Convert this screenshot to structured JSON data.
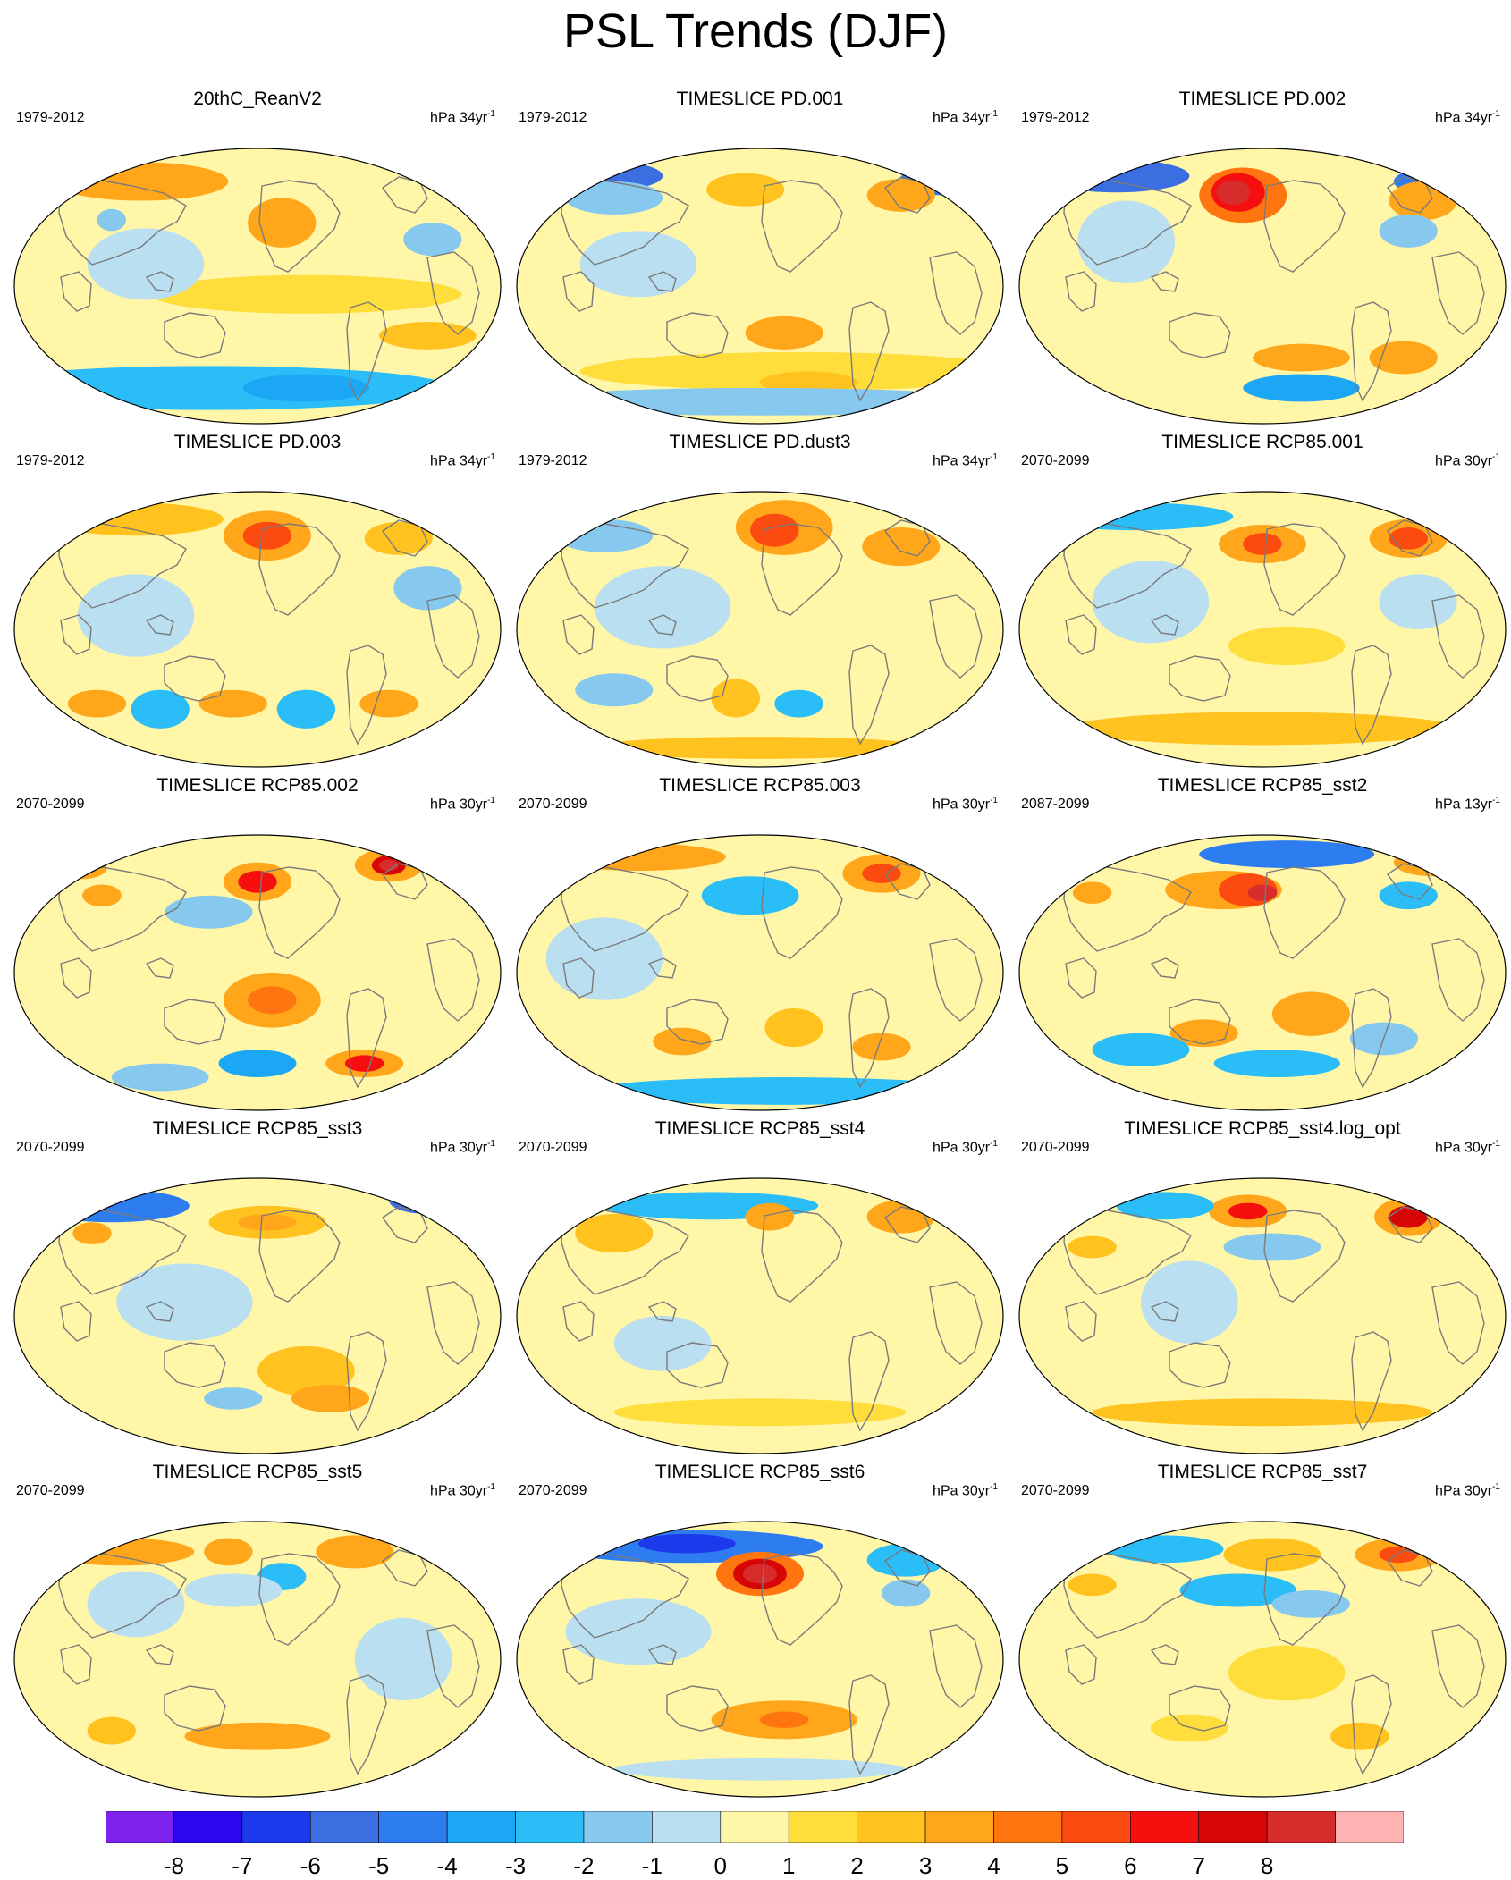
{
  "title": "PSL Trends (DJF)",
  "colors": {
    "levels": [
      "#7e22ee",
      "#2a07f0",
      "#1d39ec",
      "#3b6ee0",
      "#2d7cf0",
      "#1ca7f5",
      "#2abdf8",
      "#87c8ee",
      "#b9dff0",
      "#fff6a8",
      "#ffdd3a",
      "#ffc21e",
      "#ffa61b",
      "#ff7510",
      "#fb4b10",
      "#f50f0f",
      "#d70606",
      "#d72c2c",
      "#ffb4b4"
    ],
    "coastline": "#7a7a7a"
  },
  "colorbar": {
    "labels": [
      "-8",
      "-7",
      "-6",
      "-5",
      "-4",
      "-3",
      "-2",
      "-1",
      "0",
      "1",
      "2",
      "3",
      "4",
      "5",
      "6",
      "7",
      "8"
    ]
  },
  "panels": [
    {
      "title": "20thC_ReanV2",
      "period": "1979-2012",
      "units": "hPa 34yr",
      "units_exp": "-1",
      "blobs": [
        [
          0.26,
          0.12,
          0.18,
          0.07,
          3
        ],
        [
          0.55,
          0.27,
          0.07,
          0.09,
          3
        ],
        [
          0.2,
          0.26,
          0.03,
          0.04,
          -2
        ],
        [
          0.4,
          0.87,
          0.5,
          0.08,
          -3
        ],
        [
          0.6,
          0.87,
          0.13,
          0.05,
          -4
        ],
        [
          0.22,
          0.86,
          0.1,
          0.05,
          -3
        ],
        [
          0.85,
          0.68,
          0.1,
          0.05,
          2
        ],
        [
          0.6,
          0.53,
          0.32,
          0.07,
          1
        ],
        [
          0.86,
          0.33,
          0.06,
          0.06,
          -2
        ],
        [
          0.27,
          0.42,
          0.12,
          0.13,
          -1
        ]
      ]
    },
    {
      "title": "TIMESLICE PD.001",
      "period": "1979-2012",
      "units": "hPa 34yr",
      "units_exp": "-1",
      "blobs": [
        [
          0.2,
          0.1,
          0.1,
          0.05,
          -6
        ],
        [
          0.87,
          0.11,
          0.08,
          0.06,
          -5
        ],
        [
          0.47,
          0.15,
          0.08,
          0.06,
          2
        ],
        [
          0.79,
          0.17,
          0.07,
          0.06,
          3
        ],
        [
          0.58,
          0.81,
          0.45,
          0.07,
          1
        ],
        [
          0.55,
          0.67,
          0.08,
          0.06,
          3
        ],
        [
          0.6,
          0.85,
          0.1,
          0.04,
          2
        ],
        [
          0.25,
          0.42,
          0.12,
          0.12,
          -1
        ],
        [
          0.5,
          0.92,
          0.5,
          0.05,
          -2
        ],
        [
          0.2,
          0.18,
          0.1,
          0.06,
          -2
        ]
      ]
    },
    {
      "title": "TIMESLICE PD.002",
      "period": "1979-2012",
      "units": "hPa 34yr",
      "units_exp": "-1",
      "blobs": [
        [
          0.2,
          0.1,
          0.15,
          0.06,
          -6
        ],
        [
          0.85,
          0.12,
          0.08,
          0.05,
          -5
        ],
        [
          0.46,
          0.17,
          0.09,
          0.1,
          4
        ],
        [
          0.45,
          0.16,
          0.055,
          0.07,
          6
        ],
        [
          0.44,
          0.16,
          0.035,
          0.045,
          8
        ],
        [
          0.83,
          0.19,
          0.07,
          0.07,
          3
        ],
        [
          0.58,
          0.76,
          0.1,
          0.05,
          3
        ],
        [
          0.58,
          0.87,
          0.12,
          0.05,
          -4
        ],
        [
          0.79,
          0.76,
          0.07,
          0.06,
          3
        ],
        [
          0.22,
          0.34,
          0.1,
          0.15,
          -1
        ],
        [
          0.8,
          0.3,
          0.06,
          0.06,
          -2
        ]
      ]
    },
    {
      "title": "TIMESLICE PD.003",
      "period": "1979-2012",
      "units": "hPa 34yr",
      "units_exp": "-1",
      "blobs": [
        [
          0.25,
          0.1,
          0.18,
          0.06,
          2
        ],
        [
          0.52,
          0.16,
          0.09,
          0.09,
          3
        ],
        [
          0.52,
          0.16,
          0.05,
          0.05,
          5
        ],
        [
          0.79,
          0.17,
          0.07,
          0.06,
          2
        ],
        [
          0.17,
          0.77,
          0.06,
          0.05,
          3
        ],
        [
          0.45,
          0.77,
          0.07,
          0.05,
          3
        ],
        [
          0.77,
          0.77,
          0.06,
          0.05,
          3
        ],
        [
          0.3,
          0.79,
          0.06,
          0.07,
          -3
        ],
        [
          0.6,
          0.79,
          0.06,
          0.07,
          -3
        ],
        [
          0.25,
          0.45,
          0.12,
          0.15,
          -1
        ],
        [
          0.85,
          0.35,
          0.07,
          0.08,
          -2
        ]
      ]
    },
    {
      "title": "TIMESLICE PD.dust3",
      "period": "1979-2012",
      "units": "hPa 34yr",
      "units_exp": "-1",
      "blobs": [
        [
          0.55,
          0.13,
          0.1,
          0.1,
          3
        ],
        [
          0.53,
          0.14,
          0.05,
          0.06,
          5
        ],
        [
          0.79,
          0.2,
          0.08,
          0.07,
          3
        ],
        [
          0.18,
          0.16,
          0.1,
          0.06,
          -2
        ],
        [
          0.45,
          0.75,
          0.05,
          0.07,
          2
        ],
        [
          0.58,
          0.77,
          0.05,
          0.05,
          -3
        ],
        [
          0.2,
          0.72,
          0.08,
          0.06,
          -2
        ],
        [
          0.5,
          0.93,
          0.35,
          0.04,
          2
        ],
        [
          0.3,
          0.42,
          0.14,
          0.15,
          -1
        ]
      ]
    },
    {
      "title": "TIMESLICE RCP85.001",
      "period": "2070-2099",
      "units": "hPa 30yr",
      "units_exp": "-1",
      "blobs": [
        [
          0.24,
          0.09,
          0.2,
          0.05,
          -3
        ],
        [
          0.5,
          0.19,
          0.09,
          0.07,
          3
        ],
        [
          0.5,
          0.19,
          0.04,
          0.04,
          5
        ],
        [
          0.8,
          0.17,
          0.08,
          0.07,
          3
        ],
        [
          0.8,
          0.17,
          0.04,
          0.04,
          5
        ],
        [
          0.5,
          0.86,
          0.4,
          0.06,
          2
        ],
        [
          0.55,
          0.56,
          0.12,
          0.07,
          1
        ],
        [
          0.27,
          0.4,
          0.12,
          0.15,
          -1
        ],
        [
          0.82,
          0.4,
          0.08,
          0.1,
          -1
        ]
      ]
    },
    {
      "title": "TIMESLICE RCP85.002",
      "period": "2070-2099",
      "units": "hPa 30yr",
      "units_exp": "-1",
      "blobs": [
        [
          0.5,
          0.17,
          0.07,
          0.07,
          3
        ],
        [
          0.5,
          0.17,
          0.04,
          0.04,
          6
        ],
        [
          0.77,
          0.11,
          0.07,
          0.06,
          3
        ],
        [
          0.77,
          0.11,
          0.035,
          0.035,
          7
        ],
        [
          0.77,
          0.11,
          0.02,
          0.02,
          8
        ],
        [
          0.18,
          0.22,
          0.04,
          0.04,
          3
        ],
        [
          0.53,
          0.6,
          0.1,
          0.1,
          3
        ],
        [
          0.53,
          0.6,
          0.05,
          0.05,
          4
        ],
        [
          0.72,
          0.83,
          0.08,
          0.05,
          3
        ],
        [
          0.72,
          0.83,
          0.04,
          0.03,
          6
        ],
        [
          0.5,
          0.83,
          0.08,
          0.05,
          -4
        ],
        [
          0.3,
          0.88,
          0.1,
          0.05,
          -2
        ],
        [
          0.4,
          0.28,
          0.09,
          0.06,
          -2
        ],
        [
          0.14,
          0.12,
          0.05,
          0.04,
          3
        ]
      ]
    },
    {
      "title": "TIMESLICE RCP85.003",
      "period": "2070-2099",
      "units": "hPa 30yr",
      "units_exp": "-1",
      "blobs": [
        [
          0.25,
          0.08,
          0.18,
          0.05,
          3
        ],
        [
          0.75,
          0.14,
          0.08,
          0.07,
          3
        ],
        [
          0.75,
          0.14,
          0.04,
          0.035,
          5
        ],
        [
          0.48,
          0.22,
          0.1,
          0.07,
          -3
        ],
        [
          0.34,
          0.75,
          0.06,
          0.05,
          3
        ],
        [
          0.57,
          0.7,
          0.06,
          0.07,
          2
        ],
        [
          0.75,
          0.77,
          0.06,
          0.05,
          3
        ],
        [
          0.55,
          0.93,
          0.4,
          0.05,
          -3
        ],
        [
          0.18,
          0.45,
          0.12,
          0.15,
          -1
        ]
      ]
    },
    {
      "title": "TIMESLICE RCP85_sst2",
      "period": "2087-2099",
      "units": "hPa 13yr",
      "units_exp": "-1",
      "blobs": [
        [
          0.55,
          0.07,
          0.18,
          0.05,
          -5
        ],
        [
          0.42,
          0.2,
          0.12,
          0.07,
          3
        ],
        [
          0.47,
          0.2,
          0.06,
          0.06,
          5
        ],
        [
          0.5,
          0.21,
          0.03,
          0.03,
          8
        ],
        [
          0.15,
          0.21,
          0.04,
          0.04,
          3
        ],
        [
          0.8,
          0.22,
          0.06,
          0.05,
          -3
        ],
        [
          0.85,
          0.1,
          0.08,
          0.05,
          3
        ],
        [
          0.38,
          0.72,
          0.07,
          0.05,
          3
        ],
        [
          0.6,
          0.65,
          0.08,
          0.08,
          3
        ],
        [
          0.25,
          0.78,
          0.1,
          0.06,
          -3
        ],
        [
          0.53,
          0.83,
          0.13,
          0.05,
          -3
        ],
        [
          0.75,
          0.74,
          0.07,
          0.06,
          -2
        ]
      ]
    },
    {
      "title": "TIMESLICE RCP85_sst3",
      "period": "2070-2099",
      "units": "hPa 30yr",
      "units_exp": "-1",
      "blobs": [
        [
          0.2,
          0.1,
          0.16,
          0.06,
          -5
        ],
        [
          0.85,
          0.08,
          0.08,
          0.05,
          -6
        ],
        [
          0.52,
          0.16,
          0.12,
          0.06,
          2
        ],
        [
          0.52,
          0.16,
          0.06,
          0.03,
          3
        ],
        [
          0.16,
          0.2,
          0.04,
          0.04,
          3
        ],
        [
          0.6,
          0.7,
          0.1,
          0.09,
          2
        ],
        [
          0.65,
          0.8,
          0.08,
          0.05,
          3
        ],
        [
          0.45,
          0.8,
          0.06,
          0.04,
          -2
        ],
        [
          0.35,
          0.45,
          0.14,
          0.14,
          -1
        ]
      ]
    },
    {
      "title": "TIMESLICE RCP85_sst4",
      "period": "2070-2099",
      "units": "hPa 30yr",
      "units_exp": "-1",
      "blobs": [
        [
          0.4,
          0.1,
          0.22,
          0.05,
          -3
        ],
        [
          0.52,
          0.14,
          0.05,
          0.05,
          3
        ],
        [
          0.79,
          0.14,
          0.07,
          0.06,
          3
        ],
        [
          0.2,
          0.2,
          0.08,
          0.07,
          2
        ],
        [
          0.3,
          0.6,
          0.1,
          0.1,
          -1
        ],
        [
          0.5,
          0.85,
          0.3,
          0.05,
          1
        ]
      ]
    },
    {
      "title": "TIMESLICE RCP85_sst4.log_opt",
      "period": "2070-2099",
      "units": "hPa 30yr",
      "units_exp": "-1",
      "blobs": [
        [
          0.47,
          0.12,
          0.08,
          0.06,
          3
        ],
        [
          0.47,
          0.12,
          0.04,
          0.03,
          6
        ],
        [
          0.8,
          0.14,
          0.07,
          0.07,
          3
        ],
        [
          0.8,
          0.14,
          0.04,
          0.04,
          7
        ],
        [
          0.3,
          0.1,
          0.1,
          0.05,
          -3
        ],
        [
          0.52,
          0.25,
          0.1,
          0.05,
          -2
        ],
        [
          0.15,
          0.25,
          0.05,
          0.04,
          2
        ],
        [
          0.5,
          0.85,
          0.35,
          0.05,
          2
        ],
        [
          0.35,
          0.45,
          0.1,
          0.15,
          -1
        ]
      ]
    },
    {
      "title": "TIMESLICE RCP85_sst5",
      "period": "2070-2099",
      "units": "hPa 30yr",
      "units_exp": "-1",
      "blobs": [
        [
          0.22,
          0.11,
          0.15,
          0.05,
          3
        ],
        [
          0.44,
          0.11,
          0.05,
          0.05,
          3
        ],
        [
          0.7,
          0.11,
          0.08,
          0.06,
          3
        ],
        [
          0.55,
          0.2,
          0.05,
          0.05,
          -3
        ],
        [
          0.45,
          0.25,
          0.1,
          0.06,
          -1
        ],
        [
          0.5,
          0.78,
          0.15,
          0.05,
          3
        ],
        [
          0.2,
          0.76,
          0.05,
          0.05,
          2
        ],
        [
          0.8,
          0.5,
          0.1,
          0.15,
          -1
        ],
        [
          0.25,
          0.3,
          0.1,
          0.12,
          -1
        ]
      ]
    },
    {
      "title": "TIMESLICE RCP85_sst6",
      "period": "2070-2099",
      "units": "hPa 30yr",
      "units_exp": "-1",
      "blobs": [
        [
          0.35,
          0.09,
          0.28,
          0.06,
          -5
        ],
        [
          0.35,
          0.08,
          0.1,
          0.035,
          -7
        ],
        [
          0.5,
          0.19,
          0.09,
          0.08,
          4
        ],
        [
          0.5,
          0.19,
          0.055,
          0.055,
          7
        ],
        [
          0.5,
          0.19,
          0.035,
          0.035,
          8
        ],
        [
          0.8,
          0.14,
          0.08,
          0.06,
          -3
        ],
        [
          0.8,
          0.26,
          0.05,
          0.05,
          -2
        ],
        [
          0.55,
          0.72,
          0.15,
          0.07,
          3
        ],
        [
          0.55,
          0.72,
          0.05,
          0.03,
          4
        ],
        [
          0.5,
          0.9,
          0.3,
          0.04,
          -1
        ],
        [
          0.25,
          0.4,
          0.15,
          0.12,
          -1
        ]
      ]
    },
    {
      "title": "TIMESLICE RCP85_sst7",
      "period": "2070-2099",
      "units": "hPa 30yr",
      "units_exp": "-1",
      "blobs": [
        [
          0.3,
          0.1,
          0.12,
          0.05,
          -3
        ],
        [
          0.52,
          0.12,
          0.1,
          0.06,
          2
        ],
        [
          0.78,
          0.12,
          0.09,
          0.06,
          3
        ],
        [
          0.78,
          0.12,
          0.04,
          0.03,
          5
        ],
        [
          0.45,
          0.25,
          0.12,
          0.06,
          -3
        ],
        [
          0.6,
          0.3,
          0.08,
          0.05,
          -2
        ],
        [
          0.15,
          0.23,
          0.05,
          0.04,
          2
        ],
        [
          0.55,
          0.55,
          0.12,
          0.1,
          1
        ],
        [
          0.7,
          0.78,
          0.06,
          0.05,
          2
        ],
        [
          0.35,
          0.75,
          0.08,
          0.05,
          1
        ]
      ]
    }
  ]
}
